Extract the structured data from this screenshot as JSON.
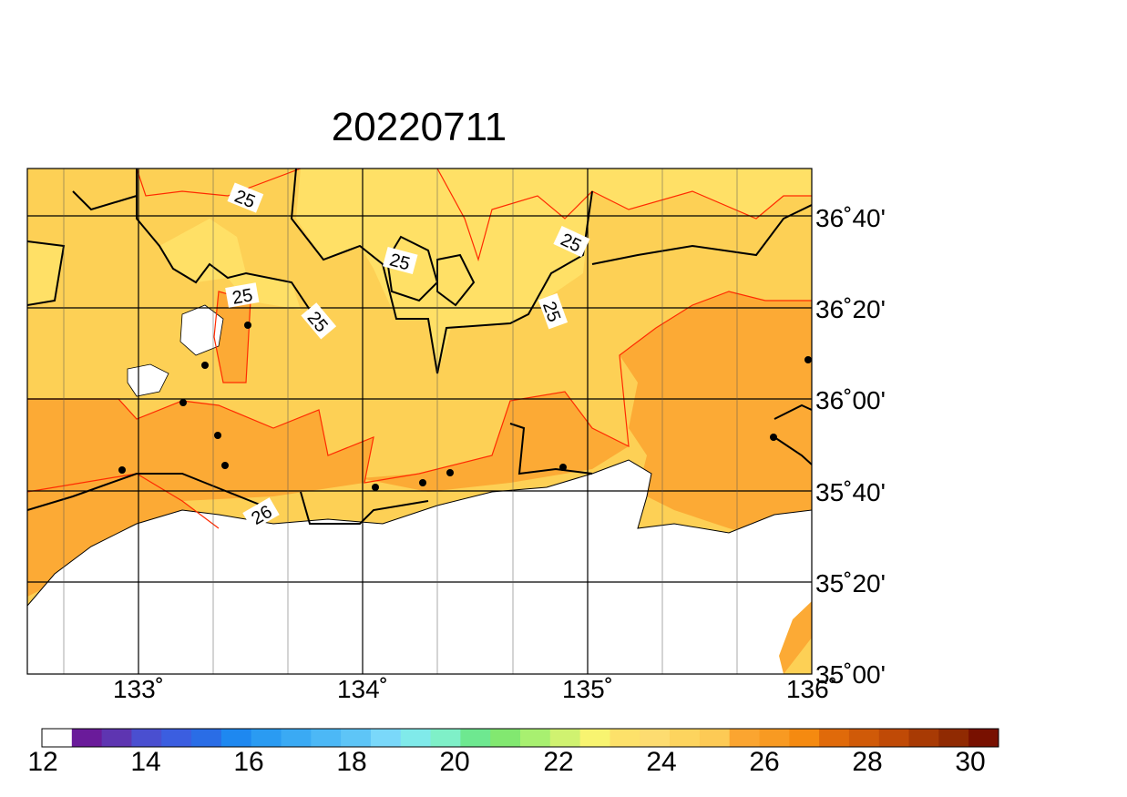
{
  "title": "20220711",
  "lat_labels": [
    "36˚40'",
    "36˚20'",
    "36˚00'",
    "35˚40'",
    "35˚20'",
    "35˚00'"
  ],
  "lon_labels": [
    "133˚",
    "134˚",
    "135˚",
    "136˚"
  ],
  "contour_labels": [
    "25",
    "25",
    "25",
    "25",
    "25",
    "25",
    "26"
  ],
  "colorbar": {
    "tick_labels": [
      "12",
      "14",
      "16",
      "18",
      "20",
      "22",
      "24",
      "26",
      "28",
      "30"
    ],
    "colors": [
      "#ffffff",
      "#6a1b9a",
      "#5e35b1",
      "#4a4fd0",
      "#3b5ee0",
      "#2a6de6",
      "#1e88f0",
      "#2a9bf2",
      "#3aaaf4",
      "#4cb8f6",
      "#5ec5f7",
      "#7ad8fa",
      "#80eaea",
      "#7ff0c8",
      "#6ee890",
      "#82e870",
      "#a8f070",
      "#d0f270",
      "#f8f470",
      "#fde16a",
      "#fddc70",
      "#fdd45e",
      "#fdca55",
      "#fba530",
      "#f89a22",
      "#f58a10",
      "#e06a0a",
      "#d05a08",
      "#c04a06",
      "#a83a04",
      "#902a02",
      "#781000"
    ]
  },
  "map_colors": {
    "light": "#ffe066",
    "mid": "#fdd055",
    "warm": "#fcaa35",
    "hot": "#f58a1a"
  }
}
